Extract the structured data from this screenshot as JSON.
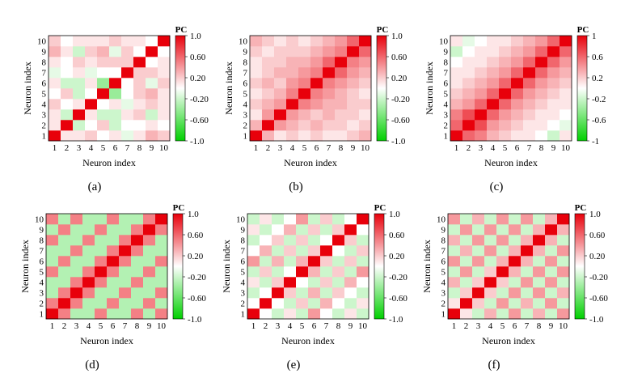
{
  "figure": {
    "colors": {
      "positive": "#e8000b",
      "neutral": "#ffffff",
      "negative": "#00d000"
    }
  },
  "chart_data": [
    {
      "type": "heatmap",
      "label": "(a)",
      "xlabel": "Neuron index",
      "ylabel": "Neuron index",
      "x_ticks": [
        "1",
        "2",
        "3",
        "4",
        "5",
        "6",
        "7",
        "8",
        "9",
        "10"
      ],
      "y_ticks": [
        "1",
        "2",
        "3",
        "4",
        "5",
        "6",
        "7",
        "8",
        "9",
        "10"
      ],
      "colorbar": {
        "title": "PC",
        "ticks": [
          "1.0",
          "0.60",
          "0.20",
          "-0.20",
          "-0.60",
          "-1.0"
        ],
        "range": [
          -1,
          1
        ]
      },
      "values": [
        [
          1.0,
          0.1,
          0.1,
          0.2,
          0.0,
          0.1,
          -0.1,
          0.1,
          0.3,
          0.2
        ],
        [
          0.1,
          1.0,
          -0.2,
          0.0,
          0.2,
          -0.2,
          0.0,
          0.0,
          0.1,
          0.0
        ],
        [
          0.1,
          -0.2,
          1.0,
          0.1,
          -0.2,
          -0.2,
          0.1,
          0.2,
          -0.2,
          0.1
        ],
        [
          0.2,
          0.0,
          0.1,
          1.0,
          0.0,
          0.1,
          -0.1,
          0.1,
          0.2,
          0.1
        ],
        [
          0.0,
          0.2,
          -0.2,
          0.0,
          1.0,
          -0.4,
          0.0,
          0.2,
          0.3,
          0.1
        ],
        [
          0.1,
          -0.2,
          -0.2,
          0.1,
          -0.4,
          1.0,
          0.0,
          0.2,
          -0.1,
          0.2
        ],
        [
          -0.1,
          0.0,
          0.1,
          -0.1,
          0.0,
          0.0,
          1.0,
          0.2,
          0.2,
          0.1
        ],
        [
          0.1,
          0.0,
          0.2,
          0.1,
          0.2,
          0.2,
          0.2,
          1.0,
          0.0,
          0.1
        ],
        [
          0.3,
          0.1,
          -0.2,
          0.2,
          0.3,
          -0.1,
          0.2,
          0.0,
          1.0,
          0.0
        ],
        [
          0.2,
          0.0,
          0.1,
          0.1,
          0.1,
          0.2,
          0.1,
          0.1,
          0.0,
          1.0
        ]
      ]
    },
    {
      "type": "heatmap",
      "label": "(b)",
      "xlabel": "Neuron index",
      "ylabel": "Neuron index",
      "x_ticks": [
        "1",
        "2",
        "3",
        "4",
        "5",
        "6",
        "7",
        "8",
        "9",
        "10"
      ],
      "y_ticks": [
        "1",
        "2",
        "3",
        "4",
        "5",
        "6",
        "7",
        "8",
        "9",
        "10"
      ],
      "colorbar": {
        "title": "PC",
        "ticks": [
          "1.0",
          "0.60",
          "0.20",
          "-0.20",
          "-0.60",
          "-1.0"
        ],
        "range": [
          -1,
          1
        ]
      },
      "values": [
        [
          1.0,
          0.3,
          0.1,
          0.2,
          0.1,
          0.2,
          0.1,
          0.1,
          0.2,
          0.3
        ],
        [
          0.3,
          1.0,
          0.4,
          0.3,
          0.2,
          0.3,
          0.2,
          0.2,
          0.1,
          0.2
        ],
        [
          0.1,
          0.4,
          1.0,
          0.4,
          0.3,
          0.2,
          0.3,
          0.2,
          0.2,
          0.1
        ],
        [
          0.2,
          0.3,
          0.4,
          1.0,
          0.5,
          0.4,
          0.3,
          0.3,
          0.2,
          0.2
        ],
        [
          0.1,
          0.2,
          0.3,
          0.5,
          1.0,
          0.5,
          0.4,
          0.3,
          0.2,
          0.1
        ],
        [
          0.2,
          0.3,
          0.2,
          0.4,
          0.5,
          1.0,
          0.5,
          0.4,
          0.3,
          0.2
        ],
        [
          0.1,
          0.2,
          0.3,
          0.3,
          0.4,
          0.5,
          1.0,
          0.6,
          0.4,
          0.3
        ],
        [
          0.1,
          0.2,
          0.2,
          0.3,
          0.3,
          0.4,
          0.6,
          1.0,
          0.5,
          0.4
        ],
        [
          0.2,
          0.1,
          0.2,
          0.2,
          0.2,
          0.3,
          0.4,
          0.5,
          1.0,
          0.6
        ],
        [
          0.3,
          0.2,
          0.1,
          0.2,
          0.1,
          0.2,
          0.3,
          0.4,
          0.6,
          1.0
        ]
      ]
    },
    {
      "type": "heatmap",
      "label": "(c)",
      "xlabel": "Neuron index",
      "ylabel": "Neuron index",
      "x_ticks": [
        "1",
        "2",
        "3",
        "4",
        "5",
        "6",
        "7",
        "8",
        "9",
        "10"
      ],
      "y_ticks": [
        "1",
        "2",
        "3",
        "4",
        "5",
        "6",
        "7",
        "8",
        "9",
        "10"
      ],
      "colorbar": {
        "title": "PC",
        "ticks": [
          "1",
          "0.6",
          "0.2",
          "-0.2",
          "-0.6",
          "-1"
        ],
        "range": [
          -1,
          1
        ]
      },
      "values": [
        [
          1.0,
          0.6,
          0.5,
          0.3,
          0.2,
          0.1,
          0.1,
          0.0,
          -0.2,
          0.1
        ],
        [
          0.6,
          1.0,
          0.7,
          0.4,
          0.3,
          0.2,
          0.1,
          0.1,
          0.0,
          -0.1
        ],
        [
          0.5,
          0.7,
          1.0,
          0.6,
          0.4,
          0.3,
          0.2,
          0.1,
          0.1,
          0.0
        ],
        [
          0.3,
          0.4,
          0.6,
          1.0,
          0.6,
          0.4,
          0.3,
          0.2,
          0.1,
          0.1
        ],
        [
          0.2,
          0.3,
          0.4,
          0.6,
          1.0,
          0.6,
          0.4,
          0.3,
          0.2,
          0.1
        ],
        [
          0.1,
          0.2,
          0.3,
          0.4,
          0.6,
          1.0,
          0.6,
          0.4,
          0.3,
          0.2
        ],
        [
          0.1,
          0.1,
          0.2,
          0.3,
          0.4,
          0.6,
          1.0,
          0.6,
          0.4,
          0.3
        ],
        [
          0.0,
          0.1,
          0.1,
          0.2,
          0.3,
          0.4,
          0.6,
          1.0,
          0.6,
          0.4
        ],
        [
          -0.2,
          0.0,
          0.1,
          0.1,
          0.2,
          0.3,
          0.4,
          0.6,
          1.0,
          0.6
        ],
        [
          0.1,
          -0.1,
          0.0,
          0.1,
          0.1,
          0.2,
          0.3,
          0.4,
          0.6,
          1.0
        ]
      ]
    },
    {
      "type": "heatmap",
      "label": "(d)",
      "xlabel": "Neuron index",
      "ylabel": "Neuron index",
      "x_ticks": [
        "1",
        "2",
        "3",
        "4",
        "5",
        "6",
        "7",
        "8",
        "9",
        "10"
      ],
      "y_ticks": [
        "1",
        "2",
        "3",
        "4",
        "5",
        "6",
        "7",
        "8",
        "9",
        "10"
      ],
      "colorbar": {
        "title": "PC",
        "ticks": [
          "1.0",
          "0.60",
          "0.20",
          "-0.20",
          "-0.60",
          "-1.0"
        ],
        "range": [
          -1,
          1
        ]
      },
      "values": [
        [
          1.0,
          0.5,
          -0.3,
          -0.3,
          0.5,
          -0.3,
          -0.3,
          0.5,
          -0.3,
          0.5
        ],
        [
          0.5,
          1.0,
          0.5,
          -0.3,
          -0.3,
          0.5,
          -0.3,
          -0.3,
          0.5,
          -0.3
        ],
        [
          -0.3,
          0.5,
          1.0,
          0.5,
          -0.3,
          -0.3,
          0.5,
          -0.3,
          -0.3,
          0.5
        ],
        [
          -0.3,
          -0.3,
          0.5,
          1.0,
          0.5,
          -0.3,
          -0.3,
          0.5,
          -0.3,
          -0.3
        ],
        [
          0.5,
          -0.3,
          -0.3,
          0.5,
          1.0,
          0.5,
          -0.3,
          -0.3,
          0.5,
          -0.3
        ],
        [
          -0.3,
          0.5,
          -0.3,
          -0.3,
          0.5,
          1.0,
          0.5,
          -0.3,
          -0.3,
          0.5
        ],
        [
          -0.3,
          -0.3,
          0.5,
          -0.3,
          -0.3,
          0.5,
          1.0,
          0.5,
          -0.3,
          -0.3
        ],
        [
          0.5,
          -0.3,
          -0.3,
          0.5,
          -0.3,
          -0.3,
          0.5,
          1.0,
          0.5,
          -0.3
        ],
        [
          -0.3,
          0.5,
          -0.3,
          -0.3,
          0.5,
          -0.3,
          -0.3,
          0.5,
          1.0,
          0.5
        ],
        [
          0.5,
          -0.3,
          0.5,
          -0.3,
          -0.3,
          0.5,
          -0.3,
          -0.3,
          0.5,
          1.0
        ]
      ]
    },
    {
      "type": "heatmap",
      "label": "(e)",
      "xlabel": "Neuron index",
      "ylabel": "Neuron index",
      "x_ticks": [
        "1",
        "2",
        "3",
        "4",
        "5",
        "6",
        "7",
        "8",
        "9",
        "10"
      ],
      "y_ticks": [
        "1",
        "2",
        "3",
        "4",
        "5",
        "6",
        "7",
        "8",
        "9",
        "10"
      ],
      "colorbar": {
        "title": "PC",
        "ticks": [
          "1.0",
          "0.60",
          "0.20",
          "-0.20",
          "-0.60",
          "-1.0"
        ],
        "range": [
          -1,
          1
        ]
      },
      "values": [
        [
          1.0,
          0.0,
          -0.2,
          0.1,
          -0.2,
          0.4,
          0.0,
          -0.2,
          0.1,
          -0.2
        ],
        [
          0.0,
          1.0,
          0.0,
          -0.2,
          0.2,
          -0.2,
          0.3,
          0.0,
          -0.2,
          0.1
        ],
        [
          -0.2,
          0.0,
          1.0,
          0.2,
          -0.2,
          0.3,
          -0.2,
          0.2,
          0.0,
          -0.2
        ],
        [
          0.1,
          -0.2,
          0.2,
          1.0,
          0.0,
          -0.2,
          0.2,
          -0.2,
          0.3,
          0.0
        ],
        [
          -0.2,
          0.2,
          -0.2,
          0.0,
          1.0,
          0.3,
          -0.2,
          0.2,
          -0.2,
          0.4
        ],
        [
          0.4,
          -0.2,
          0.3,
          -0.2,
          0.3,
          1.0,
          0.2,
          -0.2,
          0.2,
          -0.2
        ],
        [
          0.0,
          0.3,
          -0.2,
          0.2,
          -0.2,
          0.2,
          1.0,
          0.0,
          -0.2,
          0.2
        ],
        [
          -0.2,
          0.0,
          0.2,
          -0.2,
          0.2,
          -0.2,
          0.0,
          1.0,
          0.2,
          -0.2
        ],
        [
          0.1,
          -0.2,
          0.0,
          0.3,
          -0.2,
          0.2,
          -0.2,
          0.2,
          1.0,
          0.0
        ],
        [
          -0.2,
          0.1,
          -0.2,
          0.0,
          0.4,
          -0.2,
          0.2,
          -0.2,
          0.0,
          1.0
        ]
      ]
    },
    {
      "type": "heatmap",
      "label": "(f)",
      "xlabel": "Neuron index",
      "ylabel": "Neuron index",
      "x_ticks": [
        "1",
        "2",
        "3",
        "4",
        "5",
        "6",
        "7",
        "8",
        "9",
        "10"
      ],
      "y_ticks": [
        "1",
        "2",
        "3",
        "4",
        "5",
        "6",
        "7",
        "8",
        "9",
        "10"
      ],
      "colorbar": {
        "title": "PC",
        "ticks": [
          "1.0",
          "0.60",
          "0.20",
          "-0.20",
          "-0.60",
          "-1.0"
        ],
        "range": [
          -1,
          1
        ]
      },
      "values": [
        [
          1.0,
          0.1,
          -0.2,
          0.3,
          -0.2,
          0.4,
          -0.2,
          0.3,
          -0.2,
          0.4
        ],
        [
          0.1,
          1.0,
          0.2,
          -0.2,
          0.4,
          -0.2,
          0.3,
          -0.2,
          0.4,
          -0.2
        ],
        [
          -0.2,
          0.2,
          1.0,
          0.2,
          -0.2,
          0.4,
          -0.2,
          0.4,
          -0.2,
          0.3
        ],
        [
          0.3,
          -0.2,
          0.2,
          1.0,
          0.2,
          -0.2,
          0.4,
          -0.2,
          0.4,
          -0.2
        ],
        [
          -0.2,
          0.4,
          -0.2,
          0.2,
          1.0,
          0.3,
          -0.2,
          0.4,
          -0.2,
          0.4
        ],
        [
          0.4,
          -0.2,
          0.4,
          -0.2,
          0.3,
          1.0,
          0.3,
          -0.2,
          0.4,
          -0.2
        ],
        [
          -0.2,
          0.3,
          -0.2,
          0.4,
          -0.2,
          0.3,
          1.0,
          0.3,
          -0.2,
          0.4
        ],
        [
          0.3,
          -0.2,
          0.4,
          -0.2,
          0.4,
          -0.2,
          0.3,
          1.0,
          0.3,
          -0.2
        ],
        [
          -0.2,
          0.4,
          -0.2,
          0.4,
          -0.2,
          0.4,
          -0.2,
          0.3,
          1.0,
          0.3
        ],
        [
          0.4,
          -0.2,
          0.3,
          -0.2,
          0.4,
          -0.2,
          0.4,
          -0.2,
          0.3,
          1.0
        ]
      ]
    }
  ]
}
